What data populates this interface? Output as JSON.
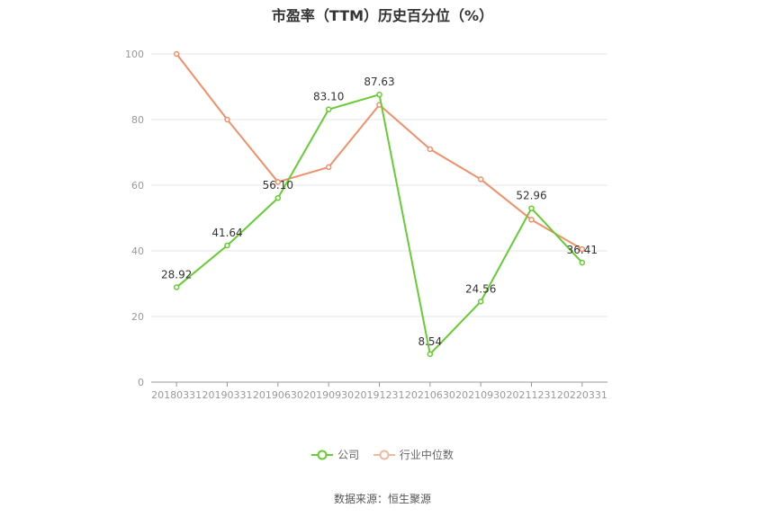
{
  "title": "市盈率（TTM）历史百分位（%）",
  "source": "数据来源：恒生聚源",
  "colors": {
    "company": "#66cc33",
    "industry": "#f0906a",
    "grid": "#e6e6e6",
    "axis": "#999999"
  },
  "chart_data": {
    "type": "line",
    "title": "市盈率（TTM）历史百分位（%）",
    "xlabel": "",
    "ylabel": "",
    "ylim": [
      0,
      100
    ],
    "yticks": [
      0,
      20,
      40,
      60,
      80,
      100
    ],
    "grid": true,
    "legend_position": "bottom",
    "x": [
      "20180331",
      "20190331",
      "20190630",
      "20190930",
      "20191231",
      "20210630",
      "20210930",
      "20211231",
      "20220331"
    ],
    "series": [
      {
        "name": "公司",
        "values": [
          28.92,
          41.64,
          56.1,
          83.1,
          87.63,
          8.54,
          24.56,
          52.96,
          36.41
        ],
        "color": "#66cc33",
        "labels": [
          "28.92",
          "41.64",
          "56.10",
          "83.10",
          "87.63",
          "8.54",
          "24.56",
          "52.96",
          "36.41"
        ]
      },
      {
        "name": "行业中位数",
        "values": [
          100,
          80,
          61,
          65.5,
          84.5,
          71,
          61.8,
          49.5,
          40.5
        ],
        "color": "#f0906a"
      }
    ]
  }
}
